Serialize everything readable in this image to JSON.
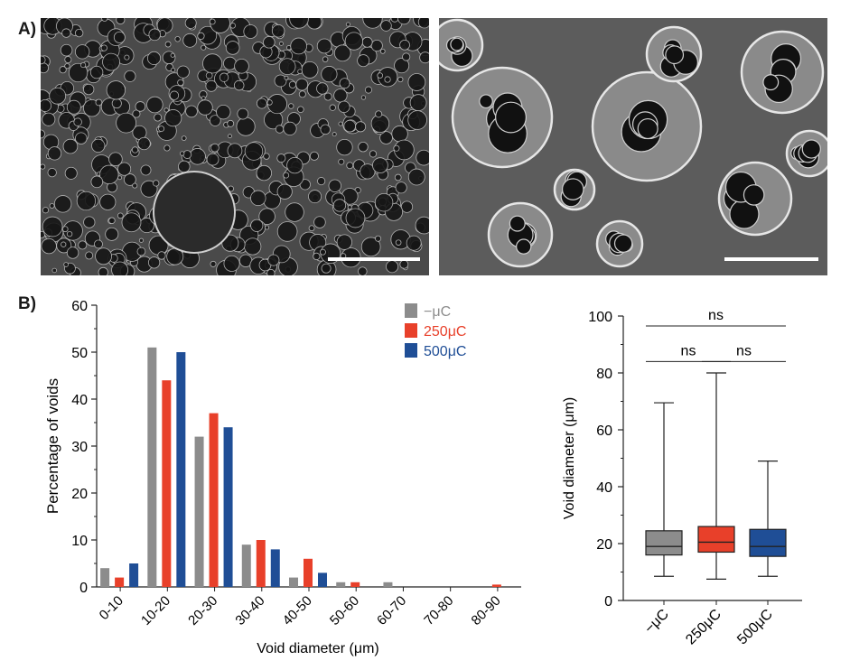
{
  "panels": {
    "a_label": "A)",
    "b_label": "B)"
  },
  "colors": {
    "minus_uc": "#8c8c8c",
    "uc250": "#e8402a",
    "uc500": "#1f4e96",
    "sem_bg": "#3a3a3a"
  },
  "chart_data": [
    {
      "type": "bar",
      "categories": [
        "0-10",
        "10-20",
        "20-30",
        "30-40",
        "40-50",
        "50-60",
        "60-70",
        "70-80",
        "80-90"
      ],
      "series": [
        {
          "name": "−μC",
          "color": "#8c8c8c",
          "values": [
            4,
            51,
            32,
            9,
            2,
            1,
            1,
            0,
            0
          ]
        },
        {
          "name": "250μC",
          "color": "#e8402a",
          "values": [
            2,
            44,
            37,
            10,
            6,
            1,
            0,
            0,
            0.5
          ]
        },
        {
          "name": "500μC",
          "color": "#1f4e96",
          "values": [
            5,
            50,
            34,
            8,
            3,
            0,
            0,
            0,
            0
          ]
        }
      ],
      "xlabel": "Void diameter (μm)",
      "ylabel": "Percentage of voids",
      "ylim": [
        0,
        60
      ],
      "yticks": [
        0,
        10,
        20,
        30,
        40,
        50,
        60
      ],
      "legend": "top-right",
      "grid": false
    },
    {
      "type": "box",
      "categories": [
        "−μC",
        "250μC",
        "500μC"
      ],
      "boxes": [
        {
          "name": "−μC",
          "color": "#8c8c8c",
          "min": 8.5,
          "q1": 16,
          "median": 19,
          "q3": 24.5,
          "max": 69.5
        },
        {
          "name": "250μC",
          "color": "#e8402a",
          "min": 7.5,
          "q1": 17,
          "median": 20.5,
          "q3": 26,
          "max": 80
        },
        {
          "name": "500μC",
          "color": "#1f4e96",
          "min": 8.5,
          "q1": 15.5,
          "median": 19,
          "q3": 25,
          "max": 49
        }
      ],
      "ylabel": "Void diameter (μm)",
      "ylim": [
        0,
        100
      ],
      "yticks": [
        0,
        20,
        40,
        60,
        80,
        100
      ],
      "significance": [
        {
          "from": 0,
          "to": 2,
          "label": "ns",
          "level": 96.5
        },
        {
          "from": 0,
          "to": 1,
          "label": "ns",
          "level": 84
        },
        {
          "from": 1,
          "to": 2,
          "label": "ns",
          "level": 84
        }
      ],
      "grid": false
    }
  ]
}
